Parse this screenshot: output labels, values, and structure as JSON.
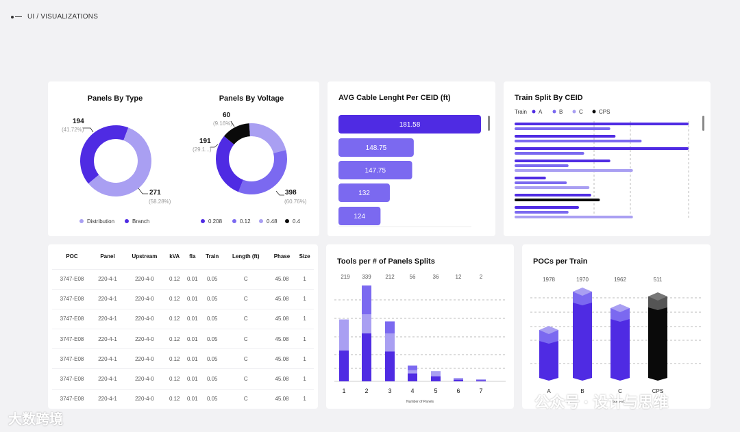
{
  "breadcrumb": "UI / VISUALIZATIONS",
  "colors": {
    "dark": "#4f2be3",
    "mid": "#7b69f0",
    "light": "#a99ff2",
    "black": "#0a0a0a"
  },
  "chart_data": [
    {
      "type": "pie",
      "title": "Panels By Type",
      "series": [
        {
          "name": "Distribution",
          "value": 271,
          "pct": "(58.28%)"
        },
        {
          "name": "Branch",
          "value": 194,
          "pct": "(41.72%)"
        }
      ]
    },
    {
      "type": "pie",
      "title": "Panels By Voltage",
      "series": [
        {
          "name": "0.208",
          "value": 191,
          "pct": "(29.1...)"
        },
        {
          "name": "0.12",
          "value": 398,
          "pct": "(60.76%)"
        },
        {
          "name": "0.48",
          "value": 0,
          "pct": ""
        },
        {
          "name": "0.4",
          "value": 60,
          "pct": "(9.16%)"
        }
      ]
    },
    {
      "type": "bar",
      "title": "AVG Cable Lenght Per CEID (ft)",
      "values": [
        181.58,
        148.75,
        147.75,
        132,
        124
      ]
    },
    {
      "type": "bar",
      "title": "Train Split By CEID",
      "legend_title": "Train",
      "legend": [
        "A",
        "B",
        "C",
        "CPS"
      ],
      "rows": [
        [
          1,
          0.55,
          0,
          0
        ],
        [
          0.58,
          0.73,
          0,
          0
        ],
        [
          1,
          0.4,
          0,
          0
        ],
        [
          0.55,
          0.31,
          0.68,
          0
        ],
        [
          0.18,
          0.3,
          0.43,
          0
        ],
        [
          0.44,
          0,
          0,
          0.49
        ],
        [
          0.37,
          0.31,
          0.68,
          0
        ]
      ]
    },
    {
      "type": "table",
      "headers": [
        "POC",
        "Panel",
        "Upstream",
        "kVA",
        "fla",
        "Train",
        "Length (ft)",
        "Phase",
        "Size"
      ],
      "rows": [
        [
          "3747-E08",
          "220-4-1",
          "220-4-0",
          "0.12",
          "0.01",
          "0.05",
          "C",
          "45.08",
          "1"
        ],
        [
          "3747-E08",
          "220-4-1",
          "220-4-0",
          "0.12",
          "0.01",
          "0.05",
          "C",
          "45.08",
          "1"
        ],
        [
          "3747-E08",
          "220-4-1",
          "220-4-0",
          "0.12",
          "0.01",
          "0.05",
          "C",
          "45.08",
          "1"
        ],
        [
          "3747-E08",
          "220-4-1",
          "220-4-0",
          "0.12",
          "0.01",
          "0.05",
          "C",
          "45.08",
          "1"
        ],
        [
          "3747-E08",
          "220-4-1",
          "220-4-0",
          "0.12",
          "0.01",
          "0.05",
          "C",
          "45.08",
          "1"
        ],
        [
          "3747-E08",
          "220-4-1",
          "220-4-0",
          "0.12",
          "0.01",
          "0.05",
          "C",
          "45.08",
          "1"
        ],
        [
          "3747-E08",
          "220-4-1",
          "220-4-0",
          "0.12",
          "0.01",
          "0.05",
          "C",
          "45.08",
          "1"
        ]
      ]
    },
    {
      "type": "bar",
      "title": "Tools per # of Panels Splits",
      "xlabel": "Number of Panels",
      "categories": [
        "1",
        "2",
        "3",
        "4",
        "5",
        "6",
        "7"
      ],
      "totals": [
        219,
        339,
        212,
        56,
        36,
        12,
        2
      ],
      "stacks": [
        [
          0.5,
          0.5,
          0
        ],
        [
          0.5,
          0.2,
          0.3
        ],
        [
          0.5,
          0.3,
          0.2
        ],
        [
          0.5,
          0.2,
          0.3
        ],
        [
          0.5,
          0.5,
          0
        ],
        [
          0.5,
          0.5,
          0
        ],
        [
          0.5,
          0.5,
          0
        ]
      ]
    },
    {
      "type": "bar",
      "title": "POCs per Train",
      "categories": [
        "A",
        "B",
        "C",
        "CPS"
      ],
      "values": [
        1978,
        1970,
        1962,
        511
      ],
      "xlabel": "build-sc"
    }
  ],
  "watermarks": {
    "left": "大数跨境",
    "right": "公众号 · 设计与思维"
  }
}
